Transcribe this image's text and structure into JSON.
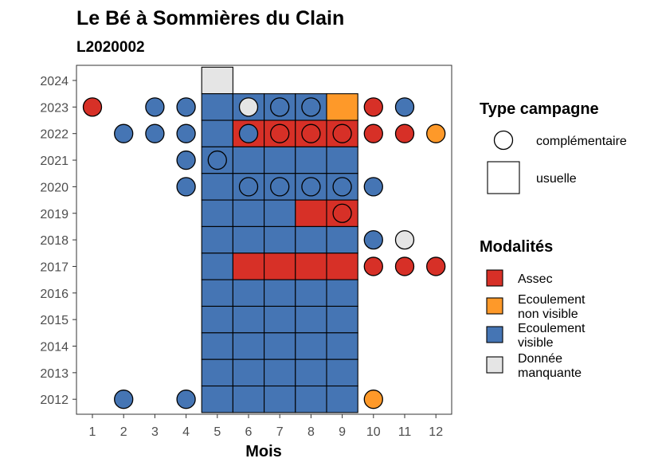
{
  "chart_data": {
    "type": "heatmap",
    "title": "Le Bé à Sommières du Clain",
    "subtitle": "L2020002",
    "xlabel": "Mois",
    "ylabel": "",
    "x_ticks": [
      "1",
      "2",
      "3",
      "4",
      "5",
      "6",
      "7",
      "8",
      "9",
      "10",
      "11",
      "12"
    ],
    "y_ticks": [
      "2012",
      "2013",
      "2014",
      "2015",
      "2016",
      "2017",
      "2018",
      "2019",
      "2020",
      "2021",
      "2022",
      "2023",
      "2024"
    ],
    "grid": false,
    "legend_position": "right",
    "modalite_colors": {
      "Assec": "#d73027",
      "Ecoulement non visible": "#fe9929",
      "Ecoulement visible": "#4575b4",
      "Donnée manquante": "#e5e5e5"
    },
    "usuelle": [
      {
        "year": 2024,
        "month": 5,
        "modalite": "Donnée manquante"
      },
      {
        "year": 2023,
        "month": 5,
        "modalite": "Ecoulement visible"
      },
      {
        "year": 2023,
        "month": 6,
        "modalite": "Ecoulement visible"
      },
      {
        "year": 2023,
        "month": 7,
        "modalite": "Ecoulement visible"
      },
      {
        "year": 2023,
        "month": 8,
        "modalite": "Ecoulement visible"
      },
      {
        "year": 2023,
        "month": 9,
        "modalite": "Ecoulement non visible"
      },
      {
        "year": 2022,
        "month": 5,
        "modalite": "Ecoulement visible"
      },
      {
        "year": 2022,
        "month": 6,
        "modalite": "Assec"
      },
      {
        "year": 2022,
        "month": 7,
        "modalite": "Assec"
      },
      {
        "year": 2022,
        "month": 8,
        "modalite": "Assec"
      },
      {
        "year": 2022,
        "month": 9,
        "modalite": "Assec"
      },
      {
        "year": 2021,
        "month": 5,
        "modalite": "Ecoulement visible"
      },
      {
        "year": 2021,
        "month": 6,
        "modalite": "Ecoulement visible"
      },
      {
        "year": 2021,
        "month": 7,
        "modalite": "Ecoulement visible"
      },
      {
        "year": 2021,
        "month": 8,
        "modalite": "Ecoulement visible"
      },
      {
        "year": 2021,
        "month": 9,
        "modalite": "Ecoulement visible"
      },
      {
        "year": 2020,
        "month": 5,
        "modalite": "Ecoulement visible"
      },
      {
        "year": 2020,
        "month": 6,
        "modalite": "Ecoulement visible"
      },
      {
        "year": 2020,
        "month": 7,
        "modalite": "Ecoulement visible"
      },
      {
        "year": 2020,
        "month": 8,
        "modalite": "Ecoulement visible"
      },
      {
        "year": 2020,
        "month": 9,
        "modalite": "Ecoulement visible"
      },
      {
        "year": 2019,
        "month": 5,
        "modalite": "Ecoulement visible"
      },
      {
        "year": 2019,
        "month": 6,
        "modalite": "Ecoulement visible"
      },
      {
        "year": 2019,
        "month": 7,
        "modalite": "Ecoulement visible"
      },
      {
        "year": 2019,
        "month": 8,
        "modalite": "Assec"
      },
      {
        "year": 2019,
        "month": 9,
        "modalite": "Assec"
      },
      {
        "year": 2018,
        "month": 5,
        "modalite": "Ecoulement visible"
      },
      {
        "year": 2018,
        "month": 6,
        "modalite": "Ecoulement visible"
      },
      {
        "year": 2018,
        "month": 7,
        "modalite": "Ecoulement visible"
      },
      {
        "year": 2018,
        "month": 8,
        "modalite": "Ecoulement visible"
      },
      {
        "year": 2018,
        "month": 9,
        "modalite": "Ecoulement visible"
      },
      {
        "year": 2017,
        "month": 5,
        "modalite": "Ecoulement visible"
      },
      {
        "year": 2017,
        "month": 6,
        "modalite": "Assec"
      },
      {
        "year": 2017,
        "month": 7,
        "modalite": "Assec"
      },
      {
        "year": 2017,
        "month": 8,
        "modalite": "Assec"
      },
      {
        "year": 2017,
        "month": 9,
        "modalite": "Assec"
      },
      {
        "year": 2016,
        "month": 5,
        "modalite": "Ecoulement visible"
      },
      {
        "year": 2016,
        "month": 6,
        "modalite": "Ecoulement visible"
      },
      {
        "year": 2016,
        "month": 7,
        "modalite": "Ecoulement visible"
      },
      {
        "year": 2016,
        "month": 8,
        "modalite": "Ecoulement visible"
      },
      {
        "year": 2016,
        "month": 9,
        "modalite": "Ecoulement visible"
      },
      {
        "year": 2015,
        "month": 5,
        "modalite": "Ecoulement visible"
      },
      {
        "year": 2015,
        "month": 6,
        "modalite": "Ecoulement visible"
      },
      {
        "year": 2015,
        "month": 7,
        "modalite": "Ecoulement visible"
      },
      {
        "year": 2015,
        "month": 8,
        "modalite": "Ecoulement visible"
      },
      {
        "year": 2015,
        "month": 9,
        "modalite": "Ecoulement visible"
      },
      {
        "year": 2014,
        "month": 5,
        "modalite": "Ecoulement visible"
      },
      {
        "year": 2014,
        "month": 6,
        "modalite": "Ecoulement visible"
      },
      {
        "year": 2014,
        "month": 7,
        "modalite": "Ecoulement visible"
      },
      {
        "year": 2014,
        "month": 8,
        "modalite": "Ecoulement visible"
      },
      {
        "year": 2014,
        "month": 9,
        "modalite": "Ecoulement visible"
      },
      {
        "year": 2013,
        "month": 5,
        "modalite": "Ecoulement visible"
      },
      {
        "year": 2013,
        "month": 6,
        "modalite": "Ecoulement visible"
      },
      {
        "year": 2013,
        "month": 7,
        "modalite": "Ecoulement visible"
      },
      {
        "year": 2013,
        "month": 8,
        "modalite": "Ecoulement visible"
      },
      {
        "year": 2013,
        "month": 9,
        "modalite": "Ecoulement visible"
      },
      {
        "year": 2012,
        "month": 5,
        "modalite": "Ecoulement visible"
      },
      {
        "year": 2012,
        "month": 6,
        "modalite": "Ecoulement visible"
      },
      {
        "year": 2012,
        "month": 7,
        "modalite": "Ecoulement visible"
      },
      {
        "year": 2012,
        "month": 8,
        "modalite": "Ecoulement visible"
      },
      {
        "year": 2012,
        "month": 9,
        "modalite": "Ecoulement visible"
      }
    ],
    "complementaire": [
      {
        "year": 2023,
        "month": 1,
        "modalite": "Assec"
      },
      {
        "year": 2023,
        "month": 3,
        "modalite": "Ecoulement visible"
      },
      {
        "year": 2023,
        "month": 4,
        "modalite": "Ecoulement visible"
      },
      {
        "year": 2023,
        "month": 6,
        "modalite": "Donnée manquante"
      },
      {
        "year": 2023,
        "month": 7,
        "modalite": "Ecoulement visible"
      },
      {
        "year": 2023,
        "month": 8,
        "modalite": "Ecoulement visible"
      },
      {
        "year": 2023,
        "month": 10,
        "modalite": "Assec"
      },
      {
        "year": 2023,
        "month": 11,
        "modalite": "Ecoulement visible"
      },
      {
        "year": 2022,
        "month": 2,
        "modalite": "Ecoulement visible"
      },
      {
        "year": 2022,
        "month": 3,
        "modalite": "Ecoulement visible"
      },
      {
        "year": 2022,
        "month": 4,
        "modalite": "Ecoulement visible"
      },
      {
        "year": 2022,
        "month": 6,
        "modalite": "Ecoulement visible"
      },
      {
        "year": 2022,
        "month": 7,
        "modalite": "Assec"
      },
      {
        "year": 2022,
        "month": 8,
        "modalite": "Assec"
      },
      {
        "year": 2022,
        "month": 9,
        "modalite": "Assec"
      },
      {
        "year": 2022,
        "month": 10,
        "modalite": "Assec"
      },
      {
        "year": 2022,
        "month": 11,
        "modalite": "Assec"
      },
      {
        "year": 2022,
        "month": 12,
        "modalite": "Ecoulement non visible"
      },
      {
        "year": 2021,
        "month": 4,
        "modalite": "Ecoulement visible"
      },
      {
        "year": 2021,
        "month": 5,
        "modalite": "Ecoulement visible"
      },
      {
        "year": 2020,
        "month": 4,
        "modalite": "Ecoulement visible"
      },
      {
        "year": 2020,
        "month": 6,
        "modalite": "Ecoulement visible"
      },
      {
        "year": 2020,
        "month": 7,
        "modalite": "Ecoulement visible"
      },
      {
        "year": 2020,
        "month": 8,
        "modalite": "Ecoulement visible"
      },
      {
        "year": 2020,
        "month": 9,
        "modalite": "Ecoulement visible"
      },
      {
        "year": 2020,
        "month": 10,
        "modalite": "Ecoulement visible"
      },
      {
        "year": 2019,
        "month": 9,
        "modalite": "Assec"
      },
      {
        "year": 2018,
        "month": 10,
        "modalite": "Ecoulement visible"
      },
      {
        "year": 2018,
        "month": 11,
        "modalite": "Donnée manquante"
      },
      {
        "year": 2017,
        "month": 10,
        "modalite": "Assec"
      },
      {
        "year": 2017,
        "month": 11,
        "modalite": "Assec"
      },
      {
        "year": 2017,
        "month": 12,
        "modalite": "Assec"
      },
      {
        "year": 2012,
        "month": 2,
        "modalite": "Ecoulement visible"
      },
      {
        "year": 2012,
        "month": 4,
        "modalite": "Ecoulement visible"
      },
      {
        "year": 2012,
        "month": 10,
        "modalite": "Ecoulement non visible"
      }
    ]
  },
  "legend": {
    "type_title": "Type campagne",
    "type_items": [
      {
        "label": "complémentaire",
        "shape": "circle"
      },
      {
        "label": "usuelle",
        "shape": "square"
      }
    ],
    "modalites_title": "Modalités",
    "modalites_items": [
      {
        "key": "Assec",
        "lines": [
          "Assec"
        ]
      },
      {
        "key": "Ecoulement non visible",
        "lines": [
          "Ecoulement",
          "non visible"
        ]
      },
      {
        "key": "Ecoulement visible",
        "lines": [
          "Ecoulement",
          "visible"
        ]
      },
      {
        "key": "Donnée manquante",
        "lines": [
          "Donnée",
          "manquante"
        ]
      }
    ]
  }
}
